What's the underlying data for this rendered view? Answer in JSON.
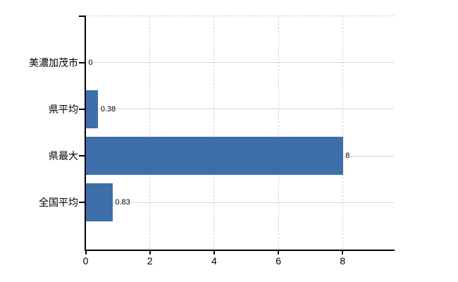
{
  "chart_data": {
    "type": "bar",
    "orientation": "horizontal",
    "categories": [
      "美濃加茂市",
      "県平均",
      "県最大",
      "全国平均"
    ],
    "values": [
      0,
      0.38,
      8,
      0.83
    ],
    "value_labels": [
      "0",
      "0.38",
      "8",
      "0.83"
    ],
    "x_ticks": [
      0,
      2,
      4,
      6,
      8
    ],
    "x_tick_labels": [
      "0",
      "2",
      "4",
      "6",
      "8"
    ],
    "xlim": [
      0,
      9.6
    ],
    "grid": {
      "horizontal": "solid",
      "vertical": "dashed",
      "top_border": "dashed"
    },
    "legend_position": "none",
    "colors": {
      "bar": "#3e6faa",
      "axis": "#000000",
      "grid_horizontal": "#d2dad2",
      "grid_vertical": "#d9d0d0",
      "top_border": "#d9cfcf",
      "text": "#000000",
      "background": "#ffffff"
    }
  }
}
